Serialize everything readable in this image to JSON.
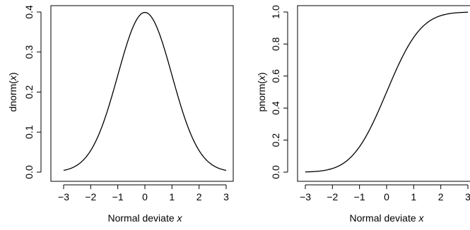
{
  "chart_data": [
    {
      "type": "line",
      "xlabel_text": "Normal deviate ",
      "xlabel_var": "x",
      "ylabel_fn": "dnorm(",
      "ylabel_var": "x",
      "ylabel_close": ")",
      "xlim": [
        -3,
        3
      ],
      "ylim": [
        0,
        0.4
      ],
      "xticks": [
        -3,
        -2,
        -1,
        0,
        1,
        2,
        3
      ],
      "xtick_labels": [
        "−3",
        "−2",
        "−1",
        "0",
        "1",
        "2",
        "3"
      ],
      "yticks": [
        0.0,
        0.1,
        0.2,
        0.3,
        0.4
      ],
      "ytick_labels": [
        "0.0",
        "0.1",
        "0.2",
        "0.3",
        "0.4"
      ],
      "grid": false,
      "series": [
        {
          "x": [
            -3.0,
            -2.5,
            -2.0,
            -1.5,
            -1.0,
            -0.5,
            0.0,
            0.5,
            1.0,
            1.5,
            2.0,
            2.5,
            3.0
          ],
          "y": [
            0.0044,
            0.0175,
            0.054,
            0.1295,
            0.242,
            0.3521,
            0.3989,
            0.3521,
            0.242,
            0.1295,
            0.054,
            0.0175,
            0.0044
          ]
        }
      ]
    },
    {
      "type": "line",
      "xlabel_text": "Normal deviate ",
      "xlabel_var": "x",
      "ylabel_fn": "pnorm(",
      "ylabel_var": "x",
      "ylabel_close": ")",
      "xlim": [
        -3,
        3
      ],
      "ylim": [
        0,
        1
      ],
      "xticks": [
        -3,
        -2,
        -1,
        0,
        1,
        2,
        3
      ],
      "xtick_labels": [
        "−3",
        "−2",
        "−1",
        "0",
        "1",
        "2",
        "3"
      ],
      "yticks": [
        0.0,
        0.2,
        0.4,
        0.6,
        0.8,
        1.0
      ],
      "ytick_labels": [
        "0.0",
        "0.2",
        "0.4",
        "0.6",
        "0.8",
        "1.0"
      ],
      "grid": false,
      "series": [
        {
          "x": [
            -3.0,
            -2.5,
            -2.0,
            -1.5,
            -1.0,
            -0.5,
            0.0,
            0.5,
            1.0,
            1.5,
            2.0,
            2.5,
            3.0
          ],
          "y": [
            0.0013,
            0.0062,
            0.0228,
            0.0668,
            0.1587,
            0.3085,
            0.5,
            0.6915,
            0.8413,
            0.9332,
            0.9772,
            0.9938,
            0.9987
          ]
        }
      ]
    }
  ]
}
